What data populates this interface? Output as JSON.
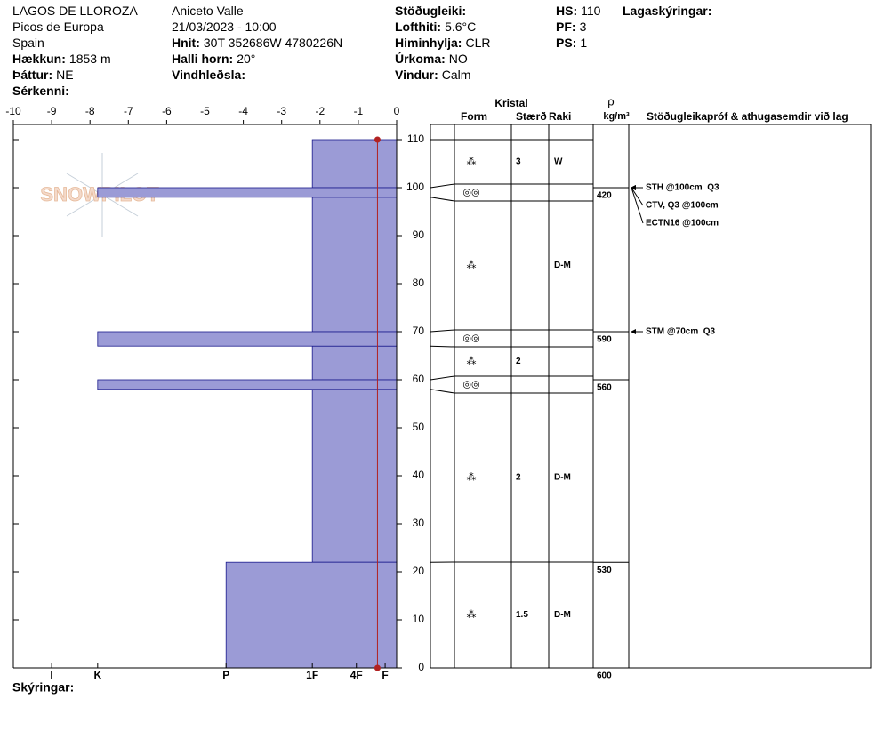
{
  "header": {
    "columns": [
      [
        {
          "value": "LAGOS DE LLOROZA"
        },
        {
          "value": "Picos de Europa"
        },
        {
          "value": "Spain"
        },
        {
          "label": "Hækkun:",
          "value": "1853 m"
        },
        {
          "label": "Þáttur:",
          "value": "NE"
        },
        {
          "label": "Sérkenni:"
        }
      ],
      [
        {
          "value": "Aniceto Valle"
        },
        {
          "value": "21/03/2023 - 10:00"
        },
        {
          "label": "Hnit:",
          "value": "30T 352686W 4780226N"
        },
        {
          "label": "Halli horn:",
          "value": "20°"
        },
        {
          "label": "Vindhleðsla:"
        }
      ],
      [
        {
          "label": "Stöðugleiki:"
        },
        {
          "label": "Lofthiti:",
          "value": "5.6°C"
        },
        {
          "label": "Himinhylja:",
          "value": "CLR"
        },
        {
          "label": "Úrkoma:",
          "value": "NO"
        },
        {
          "label": "Vindur:",
          "value": "Calm"
        }
      ],
      [
        {
          "label": "HS:",
          "value": "110"
        },
        {
          "label": "PF:",
          "value": "3"
        },
        {
          "label": "PS:",
          "value": "1"
        }
      ],
      [
        {
          "label": "Lagaskýringar:"
        }
      ]
    ]
  },
  "footer": "Skýringar:",
  "logo": "SNOWPILOT",
  "chart_data": {
    "type": "snow-profile",
    "xlim": [
      -10,
      0
    ],
    "xticks": [
      -10,
      -9,
      -8,
      -7,
      -6,
      -5,
      -4,
      -3,
      -2,
      -1,
      0
    ],
    "ylim": [
      0,
      110
    ],
    "yticks": [
      0,
      10,
      20,
      30,
      40,
      50,
      60,
      70,
      80,
      90,
      100,
      110
    ],
    "hardness_ticks": [
      {
        "value": -9,
        "label": "I"
      },
      {
        "value": -7.8,
        "label": "K"
      },
      {
        "value": -4.45,
        "label": "P"
      },
      {
        "value": -2.2,
        "label": "1F"
      },
      {
        "value": -1.05,
        "label": "4F"
      },
      {
        "value": -0.3,
        "label": "F"
      }
    ],
    "hardness_color": "#9b9bd6",
    "temperature": {
      "color": "#b22222",
      "heights": [
        110,
        0
      ],
      "values": [
        -0.5,
        -0.5
      ]
    },
    "layers": [
      {
        "top": 110,
        "bottom": 100,
        "hardness": -2.2,
        "form": "⁂",
        "size": "3",
        "wetness": "W"
      },
      {
        "top": 100,
        "bottom": 98,
        "hardness": -7.8,
        "form": "◎◎"
      },
      {
        "top": 98,
        "bottom": 70,
        "hardness": -2.2,
        "form": "⁂",
        "wetness": "D-M"
      },
      {
        "top": 70,
        "bottom": 67,
        "hardness": -7.8,
        "form": "◎◎"
      },
      {
        "top": 67,
        "bottom": 60,
        "hardness": -2.2,
        "form": "⁂",
        "size": "2"
      },
      {
        "top": 60,
        "bottom": 58,
        "hardness": -7.8,
        "form": "◎◎"
      },
      {
        "top": 58,
        "bottom": 22,
        "hardness": -2.2,
        "form": "⁂",
        "size": "2",
        "wetness": "D-M"
      },
      {
        "top": 22,
        "bottom": 0,
        "hardness": -4.45,
        "form": "⁂",
        "size": "1.5",
        "wetness": "D-M"
      }
    ],
    "densities": [
      {
        "height": 100,
        "value": 420
      },
      {
        "height": 70,
        "value": 590
      },
      {
        "height": 60,
        "value": 560
      },
      {
        "height": 22,
        "value": 530
      },
      {
        "height": 0,
        "value": 600
      }
    ],
    "tests": [
      {
        "height": 100,
        "text": "STH @100cm  Q3"
      },
      {
        "height": 100,
        "text": "CTV, Q3 @100cm"
      },
      {
        "height": 100,
        "text": "ECTN16 @100cm"
      },
      {
        "height": 70,
        "text": "STM @70cm  Q3"
      }
    ],
    "table_headers": {
      "crystal": "Kristal",
      "form": "Form",
      "size": "Stærð",
      "wetness": "Raki",
      "rho": "ρ",
      "density_unit": "kg/m³",
      "comments": "Stöðugleikapróf & athugasemdir við lag"
    }
  }
}
